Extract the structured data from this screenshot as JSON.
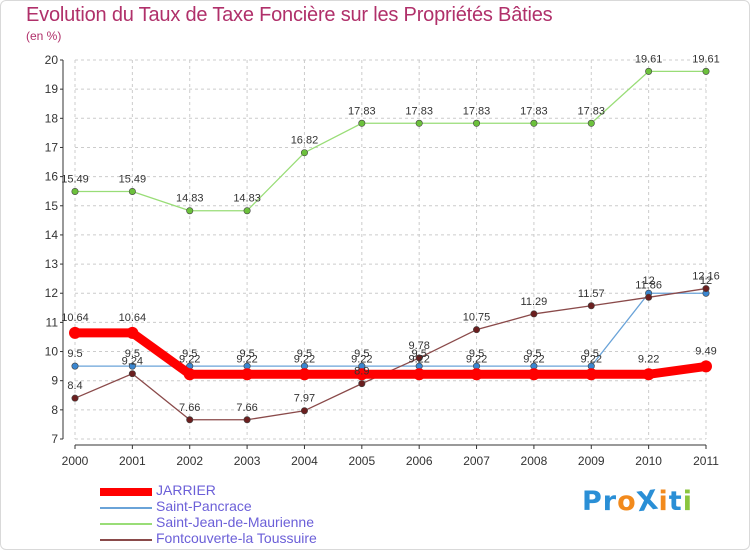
{
  "title": "Evolution du Taux de Taxe Foncière sur les Propriétés Bâties",
  "subtitle": "(en %)",
  "logo": {
    "text": "ProXiti",
    "letters": [
      "P",
      "r",
      "o",
      "X",
      "i",
      "t",
      "i"
    ],
    "colors": [
      "#2a8fd6",
      "#2a8fd6",
      "#f28a1c",
      "#2a8fd6",
      "#f28a1c",
      "#2a8fd6",
      "#8bc53f"
    ]
  },
  "chart_data": {
    "type": "line",
    "title": "Evolution du Taux de Taxe Foncière sur les Propriétés Bâties",
    "ylabel": "(en %)",
    "xlabel": "",
    "x": [
      "2000",
      "2001",
      "2002",
      "2003",
      "2004",
      "2005",
      "2006",
      "2007",
      "2008",
      "2009",
      "2010",
      "2011"
    ],
    "ylim": [
      7,
      20
    ],
    "yticks": [
      "7",
      "8",
      "9",
      "10",
      "11",
      "12",
      "13",
      "14",
      "15",
      "16",
      "17",
      "18",
      "19",
      "20"
    ],
    "legend_position": "bottom-left",
    "series": [
      {
        "name": "JARRIER",
        "color": "#ff0000",
        "values": [
          10.64,
          10.64,
          9.22,
          9.22,
          9.22,
          9.22,
          9.22,
          9.22,
          9.22,
          9.22,
          9.22,
          9.49
        ],
        "labels": [
          "10.64",
          "10.64",
          "9.22",
          "9.22",
          "9.22",
          "9.22",
          "9.22",
          "9.22",
          "9.22",
          "9.22",
          "9.22",
          "9.49"
        ]
      },
      {
        "name": "Saint-Pancrace",
        "color": "#6aa3d8",
        "point_color": "#3a86d0",
        "values": [
          9.5,
          9.5,
          9.5,
          9.5,
          9.5,
          9.5,
          9.5,
          9.5,
          9.5,
          9.5,
          12,
          12
        ],
        "labels": [
          "9.5",
          "9.5",
          "9.5",
          "9.5",
          "9.5",
          "9.5",
          "9.5",
          "9.5",
          "9.5",
          "9.5",
          "12",
          "12"
        ]
      },
      {
        "name": "Saint-Jean-de-Maurienne",
        "color": "#99dd77",
        "point_color": "#6cc13c",
        "values": [
          15.49,
          15.49,
          14.83,
          14.83,
          16.82,
          17.83,
          17.83,
          17.83,
          17.83,
          17.83,
          19.61,
          19.61
        ],
        "labels": [
          "15.49",
          "15.49",
          "14.83",
          "14.83",
          "16.82",
          "17.83",
          "17.83",
          "17.83",
          "17.83",
          "17.83",
          "19.61",
          "19.61"
        ]
      },
      {
        "name": "Fontcouverte-la Toussuire",
        "color": "#8a4a4a",
        "point_color": "#6b1f1f",
        "values": [
          8.4,
          9.24,
          7.66,
          7.66,
          7.97,
          8.9,
          9.78,
          10.75,
          11.29,
          11.57,
          11.86,
          12.16
        ],
        "labels": [
          "8.4",
          "9.24",
          "7.66",
          "7.66",
          "7.97",
          "8.9",
          "9.78",
          "10.75",
          "11.29",
          "11.57",
          "11.86",
          "12.16"
        ]
      }
    ]
  }
}
